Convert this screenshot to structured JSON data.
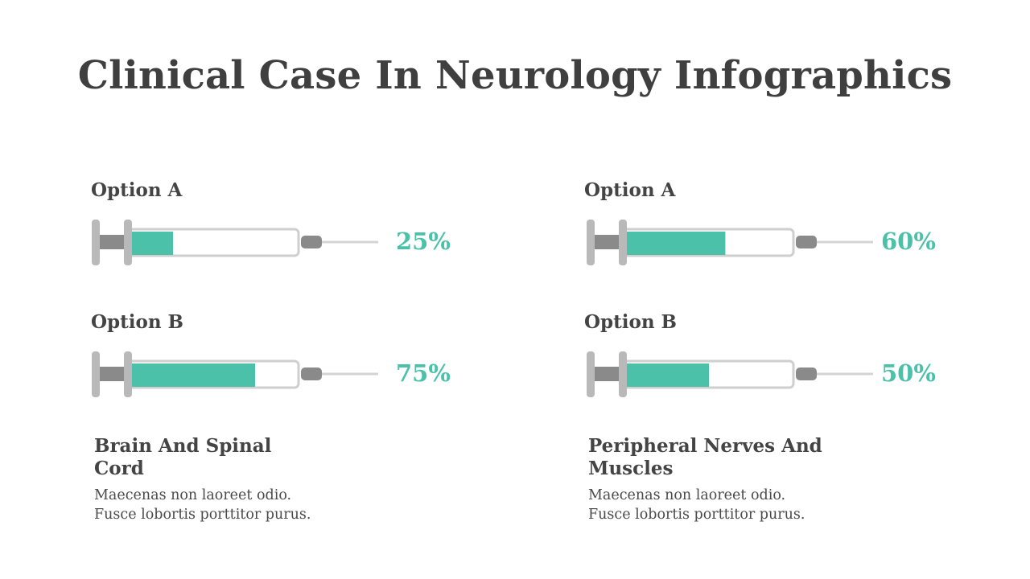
{
  "title": "Clinical Case In Neurology Infographics",
  "colors": {
    "accent": "#4bc1a9",
    "plunger": "#8a8a8a",
    "outline": "#cfcfcf",
    "text": "#444444"
  },
  "chart_data": [
    {
      "type": "bar",
      "title": "",
      "categories": [
        "Option A",
        "Option B"
      ],
      "values": [
        25,
        75
      ],
      "unit": "%",
      "labels": [
        "25%",
        "75%"
      ],
      "ylim": [
        0,
        100
      ]
    },
    {
      "type": "bar",
      "title": "",
      "categories": [
        "Option A",
        "Option B"
      ],
      "values": [
        60,
        50
      ],
      "unit": "%",
      "labels": [
        "60%",
        "50%"
      ],
      "ylim": [
        0,
        100
      ]
    }
  ],
  "columns": [
    {
      "heading_line1": "Brain And Spinal",
      "heading_line2": "Cord",
      "desc_line1": "Maecenas non laoreet odio.",
      "desc_line2": "Fusce lobortis porttitor purus."
    },
    {
      "heading_line1": "Peripheral Nerves And",
      "heading_line2": "Muscles",
      "desc_line1": "Maecenas non laoreet odio.",
      "desc_line2": "Fusce lobortis porttitor purus."
    }
  ]
}
